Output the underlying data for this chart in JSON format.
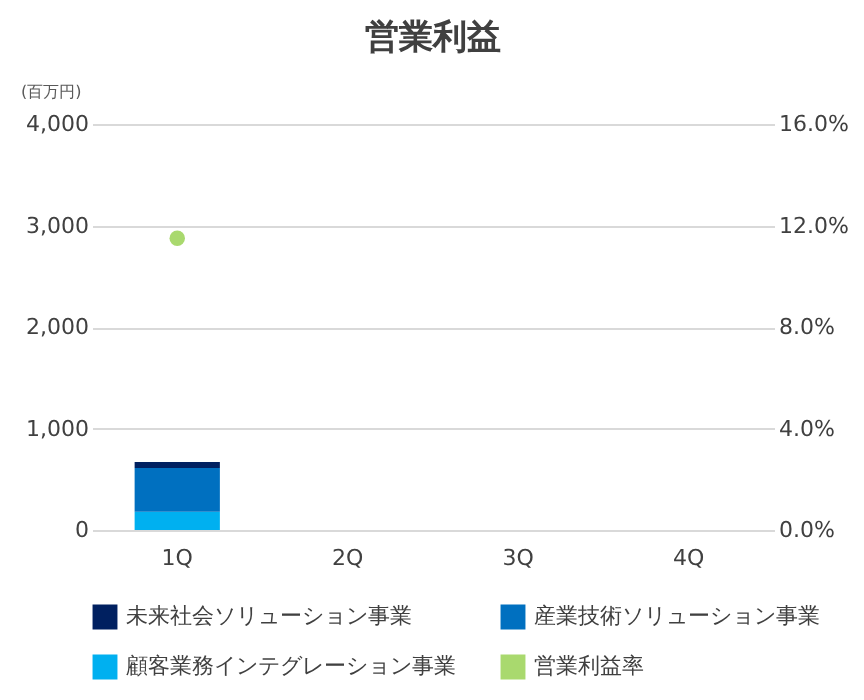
{
  "chart_data": {
    "type": "bar",
    "title": "営業利益",
    "ylabel": "(百万円)",
    "categories": [
      "1Q",
      "2Q",
      "3Q",
      "4Q"
    ],
    "stacked": true,
    "series": [
      {
        "name": "顧客業務インテグレーション事業",
        "color": "#00b0f0",
        "values": [
          180,
          null,
          null,
          null
        ]
      },
      {
        "name": "産業技術ソリューション事業",
        "color": "#0070c0",
        "values": [
          430,
          null,
          null,
          null
        ]
      },
      {
        "name": "未来社会ソリューション事業",
        "color": "#002060",
        "values": [
          60,
          null,
          null,
          null
        ]
      },
      {
        "name": "営業利益率",
        "type": "line",
        "axis": "y2",
        "marker": "circle",
        "color": "#a9d96e",
        "values": [
          11.5,
          null,
          null,
          null
        ]
      }
    ],
    "ylim": [
      0,
      4000
    ],
    "yticks": [
      {
        "value": 0,
        "label": "0"
      },
      {
        "value": 1000,
        "label": "1,000"
      },
      {
        "value": 2000,
        "label": "2,000"
      },
      {
        "value": 3000,
        "label": "3,000"
      },
      {
        "value": 4000,
        "label": "4,000"
      }
    ],
    "y2lim": [
      0,
      16
    ],
    "y2ticks": [
      {
        "value": 0,
        "label": "0.0%"
      },
      {
        "value": 4,
        "label": "4.0%"
      },
      {
        "value": 8,
        "label": "8.0%"
      },
      {
        "value": 12,
        "label": "12.0%"
      },
      {
        "value": 16,
        "label": "16.0%"
      }
    ],
    "grid": "y",
    "legend": "bottom"
  }
}
